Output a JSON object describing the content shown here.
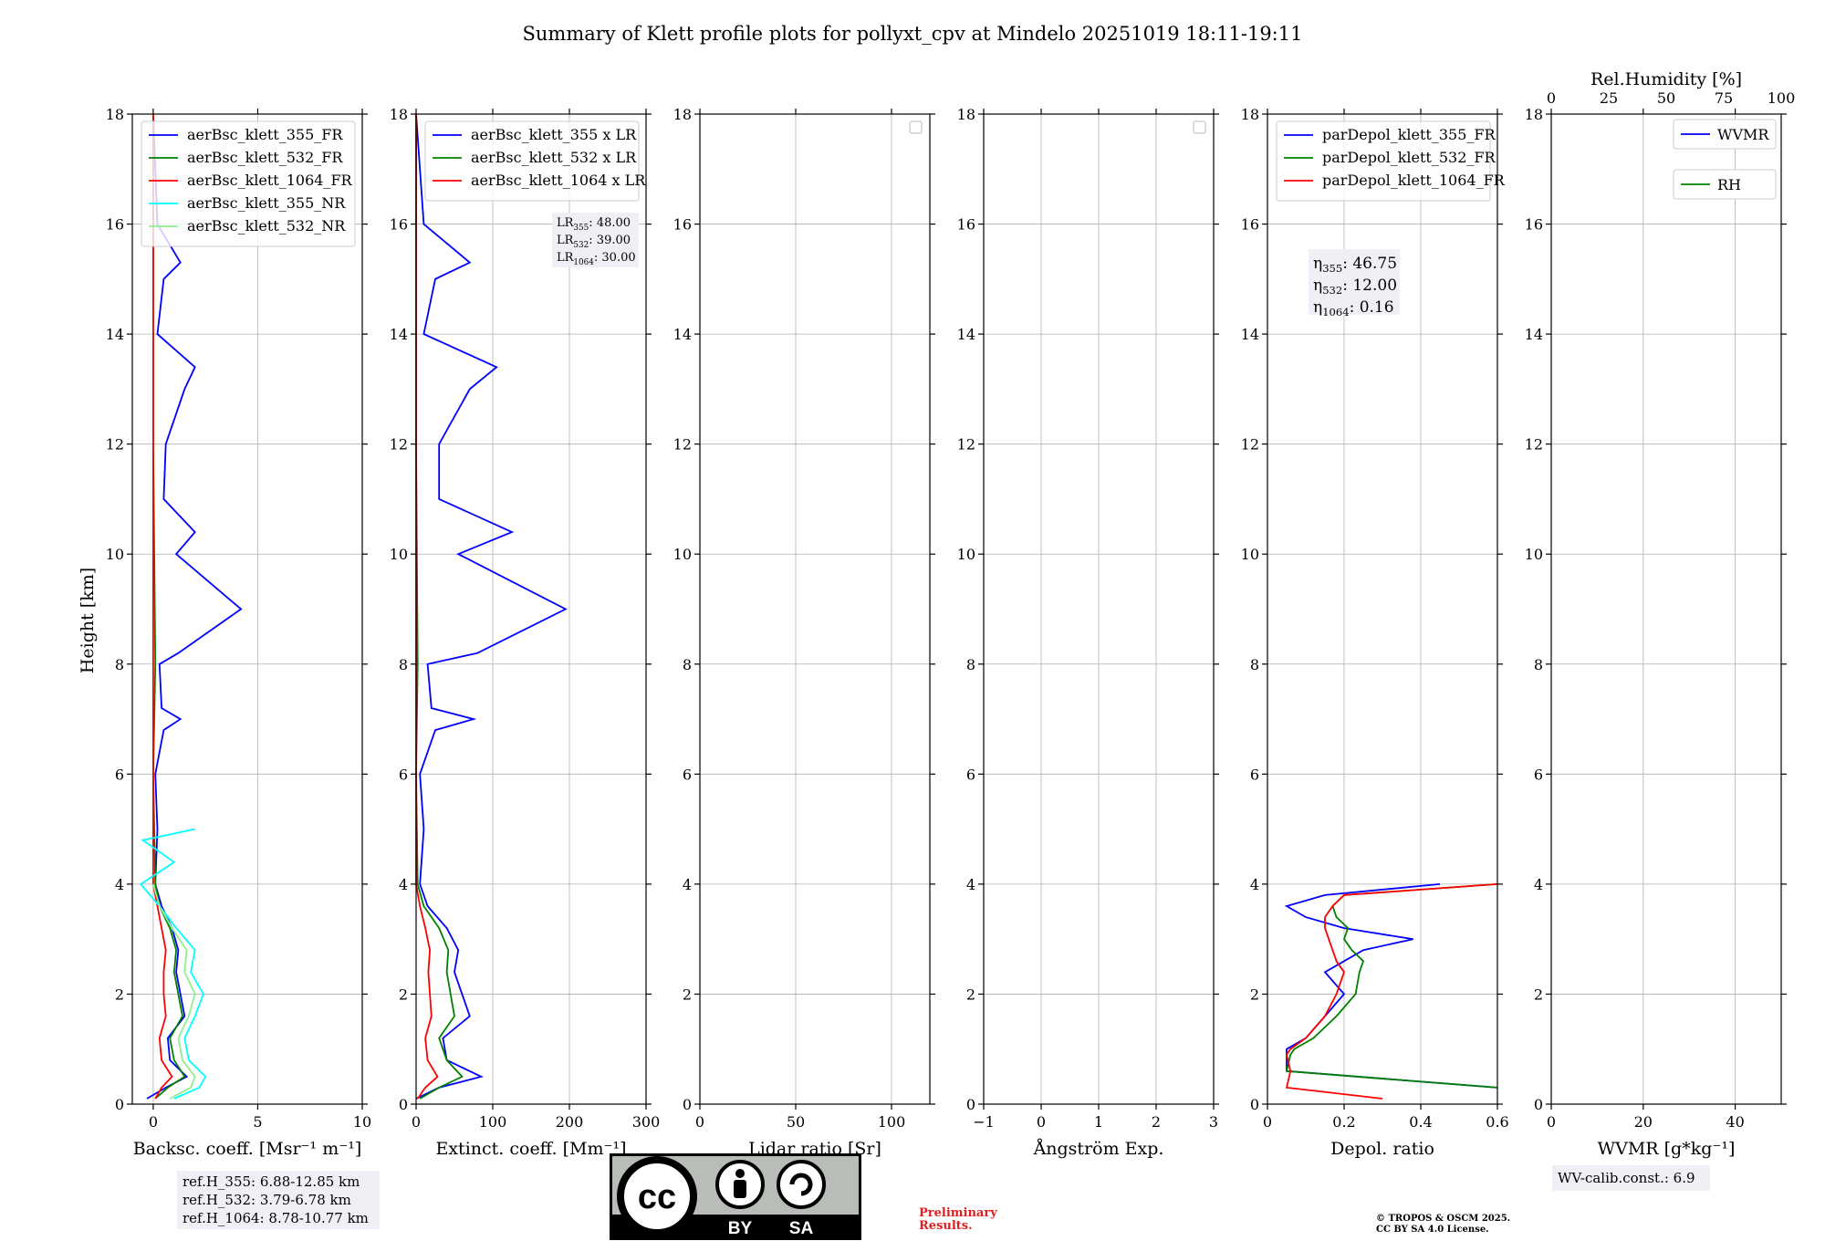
{
  "title": "Summary of Klett profile plots for pollyxt_cpv at Mindelo 20251019 18:11-19:11",
  "ylabel": "Height [km]",
  "ref_heights": [
    "ref.H_355: 6.88-12.85 km",
    "ref.H_532: 3.79-6.78 km",
    "ref.H_1064: 8.78-10.77 km"
  ],
  "wv_calib": "WV-calib.const.: 6.9",
  "preliminary": [
    "Preliminary",
    "Results."
  ],
  "copyright": [
    "© TROPOS & OSCM 2025.",
    "CC BY SA 4.0 License."
  ],
  "license_badge": {
    "cc": "cc",
    "by": "BY",
    "sa": "SA"
  },
  "colors": {
    "blue": "#0000ff",
    "green": "#008000",
    "red": "#ff0000",
    "cyan": "#00ffff",
    "lightgreen": "#90ee90"
  },
  "chart_data": [
    {
      "type": "line",
      "id": "backscatter",
      "xlabel": "Backsc. coeff. [Msr⁻¹ m⁻¹]",
      "xlim": [
        -1,
        10
      ],
      "xticks": [
        0,
        5,
        10
      ],
      "ylim": [
        0,
        18
      ],
      "yticks": [
        0,
        2,
        4,
        6,
        8,
        10,
        12,
        14,
        16,
        18
      ],
      "legend": "top-right",
      "series": [
        {
          "name": "aerBsc_klett_355_FR",
          "color": "#0000ff",
          "y": [
            0.1,
            0.3,
            0.5,
            0.8,
            1.2,
            1.6,
            2.0,
            2.4,
            2.8,
            3.2,
            3.6,
            4.0,
            5.0,
            6.0,
            6.8,
            7.0,
            7.2,
            8.0,
            8.2,
            9.0,
            10.0,
            10.4,
            11.0,
            12.0,
            13.0,
            13.4,
            14.0,
            15.0,
            15.3,
            16.0,
            17.0,
            18.0
          ],
          "x": [
            -0.3,
            0.6,
            1.6,
            0.8,
            0.7,
            1.5,
            1.3,
            1.1,
            1.2,
            0.9,
            0.4,
            0.1,
            0.2,
            0.1,
            0.5,
            1.3,
            0.4,
            0.3,
            1.2,
            4.2,
            1.1,
            2.0,
            0.5,
            0.6,
            1.5,
            2.0,
            0.2,
            0.5,
            1.3,
            0.2,
            0.1,
            0.0
          ]
        },
        {
          "name": "aerBsc_klett_532_FR",
          "color": "#008000",
          "y": [
            0.1,
            0.3,
            0.5,
            0.8,
            1.2,
            1.6,
            2.0,
            2.4,
            2.8,
            3.2,
            3.6,
            4.0,
            6.0,
            8.0,
            12.0,
            16.0,
            18.0
          ],
          "x": [
            0.1,
            0.7,
            1.5,
            1.0,
            0.8,
            1.4,
            1.2,
            1.0,
            1.1,
            0.8,
            0.3,
            0.1,
            0.0,
            0.1,
            0.0,
            0.0,
            0.0
          ]
        },
        {
          "name": "aerBsc_klett_1064_FR",
          "color": "#ff0000",
          "y": [
            0.1,
            0.3,
            0.5,
            0.8,
            1.2,
            1.6,
            2.0,
            2.4,
            2.8,
            3.2,
            3.6,
            4.0,
            6.0,
            8.0,
            12.0,
            16.0,
            18.0
          ],
          "x": [
            0.1,
            0.4,
            0.9,
            0.4,
            0.3,
            0.6,
            0.5,
            0.5,
            0.6,
            0.4,
            0.2,
            0.0,
            0.0,
            0.0,
            0.0,
            0.0,
            0.0
          ]
        },
        {
          "name": "aerBsc_klett_355_NR",
          "color": "#00ffff",
          "y": [
            0.1,
            0.3,
            0.5,
            0.8,
            1.2,
            1.6,
            2.0,
            2.4,
            2.8,
            3.2,
            3.6,
            4.0,
            4.4,
            4.8,
            5.0
          ],
          "x": [
            1.0,
            2.2,
            2.5,
            1.7,
            1.5,
            2.0,
            2.4,
            1.8,
            2.0,
            1.1,
            0.3,
            -0.6,
            1.0,
            -0.5,
            2.0
          ]
        },
        {
          "name": "aerBsc_klett_532_NR",
          "color": "#90ee90",
          "y": [
            0.1,
            0.3,
            0.5,
            0.8,
            1.2,
            1.6,
            2.0,
            2.4,
            2.8,
            3.2,
            3.6,
            4.0
          ],
          "x": [
            0.8,
            1.8,
            2.0,
            1.4,
            1.2,
            1.7,
            2.0,
            1.5,
            1.6,
            0.9,
            0.3,
            0.0
          ]
        }
      ]
    },
    {
      "type": "line",
      "id": "extinction",
      "xlabel": "Extinct. coeff. [Mm⁻¹]",
      "xlim": [
        0,
        300
      ],
      "xticks": [
        0,
        100,
        200,
        300
      ],
      "ylim": [
        0,
        18
      ],
      "yticks": [
        0,
        2,
        4,
        6,
        8,
        10,
        12,
        14,
        16,
        18
      ],
      "legend": "top-right",
      "annotation": [
        "LR355: 48.00",
        "LR532: 39.00",
        "LR1064: 30.00"
      ],
      "series": [
        {
          "name": "aerBsc_klett_355 x LR",
          "color": "#0000ff",
          "y": [
            0.1,
            0.3,
            0.5,
            0.8,
            1.2,
            1.6,
            2.0,
            2.4,
            2.8,
            3.2,
            3.6,
            4.0,
            5.0,
            6.0,
            6.8,
            7.0,
            7.2,
            8.0,
            8.2,
            9.0,
            10.0,
            10.4,
            11.0,
            12.0,
            13.0,
            13.4,
            14.0,
            15.0,
            15.3,
            16.0,
            17.0,
            18.0
          ],
          "x": [
            0,
            30,
            85,
            40,
            35,
            70,
            60,
            50,
            55,
            40,
            15,
            5,
            10,
            5,
            25,
            75,
            20,
            15,
            80,
            195,
            55,
            125,
            30,
            30,
            70,
            105,
            10,
            25,
            70,
            10,
            5,
            0
          ]
        },
        {
          "name": "aerBsc_klett_532 x LR",
          "color": "#008000",
          "y": [
            0.1,
            0.3,
            0.5,
            0.8,
            1.2,
            1.6,
            2.0,
            2.4,
            2.8,
            3.2,
            3.6,
            4.0,
            6.0,
            8.0,
            12.0,
            16.0,
            18.0
          ],
          "x": [
            5,
            30,
            60,
            40,
            30,
            50,
            45,
            40,
            42,
            30,
            10,
            2,
            0,
            2,
            0,
            0,
            0
          ]
        },
        {
          "name": "aerBsc_klett_1064 x LR",
          "color": "#ff0000",
          "y": [
            0.1,
            0.3,
            0.5,
            0.8,
            1.2,
            1.6,
            2.0,
            2.4,
            2.8,
            3.2,
            3.6,
            4.0,
            6.0,
            8.0,
            12.0,
            16.0,
            18.0
          ],
          "x": [
            2,
            12,
            28,
            15,
            12,
            20,
            18,
            16,
            18,
            12,
            5,
            0,
            0,
            0,
            0,
            0,
            0
          ]
        }
      ]
    },
    {
      "type": "line",
      "id": "lidar_ratio",
      "xlabel": "Lidar ratio [Sr]",
      "xlim": [
        0,
        120
      ],
      "xticks": [
        0,
        50,
        100
      ],
      "ylim": [
        0,
        18
      ],
      "yticks": [
        0,
        2,
        4,
        6,
        8,
        10,
        12,
        14,
        16,
        18
      ],
      "legend": "top-right",
      "series": []
    },
    {
      "type": "line",
      "id": "angstrom",
      "xlabel": "Ångström Exp.",
      "xlim": [
        -1,
        3
      ],
      "xticks": [
        -1,
        0,
        1,
        2,
        3
      ],
      "ylim": [
        0,
        18
      ],
      "yticks": [
        0,
        2,
        4,
        6,
        8,
        10,
        12,
        14,
        16,
        18
      ],
      "legend": "top-right",
      "series": []
    },
    {
      "type": "line",
      "id": "depol",
      "xlabel": "Depol. ratio",
      "xlim": [
        0,
        0.6
      ],
      "xticks": [
        0.0,
        0.2,
        0.4,
        0.6
      ],
      "ylim": [
        0,
        18
      ],
      "yticks": [
        0,
        2,
        4,
        6,
        8,
        10,
        12,
        14,
        16,
        18
      ],
      "legend": "top-right",
      "annotation": [
        "η355: 46.75",
        "η532: 12.00",
        "η1064: 0.16"
      ],
      "series": [
        {
          "name": "parDepol_klett_355_FR",
          "color": "#0000ff",
          "y": [
            0.3,
            0.6,
            0.9,
            1.0,
            1.2,
            1.6,
            2.0,
            2.4,
            2.6,
            2.8,
            3.0,
            3.2,
            3.4,
            3.6,
            3.8,
            4.0
          ],
          "x": [
            0.6,
            0.05,
            0.05,
            0.05,
            0.1,
            0.15,
            0.2,
            0.15,
            0.2,
            0.25,
            0.38,
            0.2,
            0.1,
            0.05,
            0.15,
            0.45
          ]
        },
        {
          "name": "parDepol_klett_532_FR",
          "color": "#008000",
          "y": [
            0.3,
            0.6,
            0.9,
            1.0,
            1.2,
            1.6,
            2.0,
            2.4,
            2.6,
            2.8,
            3.0,
            3.2,
            3.4,
            3.6,
            3.8,
            4.0
          ],
          "x": [
            0.6,
            0.05,
            0.06,
            0.07,
            0.12,
            0.18,
            0.23,
            0.24,
            0.25,
            0.22,
            0.2,
            0.21,
            0.18,
            0.17,
            0.2,
            0.6
          ]
        },
        {
          "name": "parDepol_klett_1064_FR",
          "color": "#ff0000",
          "y": [
            0.1,
            0.3,
            0.6,
            0.9,
            1.0,
            1.2,
            1.6,
            2.0,
            2.4,
            2.6,
            2.8,
            3.0,
            3.2,
            3.4,
            3.6,
            3.8,
            4.0
          ],
          "x": [
            0.3,
            0.05,
            0.06,
            0.05,
            0.06,
            0.1,
            0.15,
            0.18,
            0.2,
            0.18,
            0.17,
            0.16,
            0.15,
            0.15,
            0.17,
            0.2,
            0.6
          ]
        }
      ]
    },
    {
      "type": "line",
      "id": "wvmr",
      "xlabel": "WVMR [g*kg⁻¹]",
      "top_xlabel": "Rel.Humidity [%]",
      "xlim": [
        0,
        50
      ],
      "xticks": [
        0,
        20,
        40
      ],
      "top_xlim": [
        0,
        100
      ],
      "top_xticks": [
        0,
        25,
        50,
        75,
        100
      ],
      "ylim": [
        0,
        18
      ],
      "yticks": [
        0,
        2,
        4,
        6,
        8,
        10,
        12,
        14,
        16,
        18
      ],
      "legend": "top-right",
      "series": [
        {
          "name": "WVMR",
          "color": "#0000ff",
          "y": [],
          "x": []
        },
        {
          "name": "RH",
          "color": "#008000",
          "y": [],
          "x": []
        }
      ]
    }
  ]
}
